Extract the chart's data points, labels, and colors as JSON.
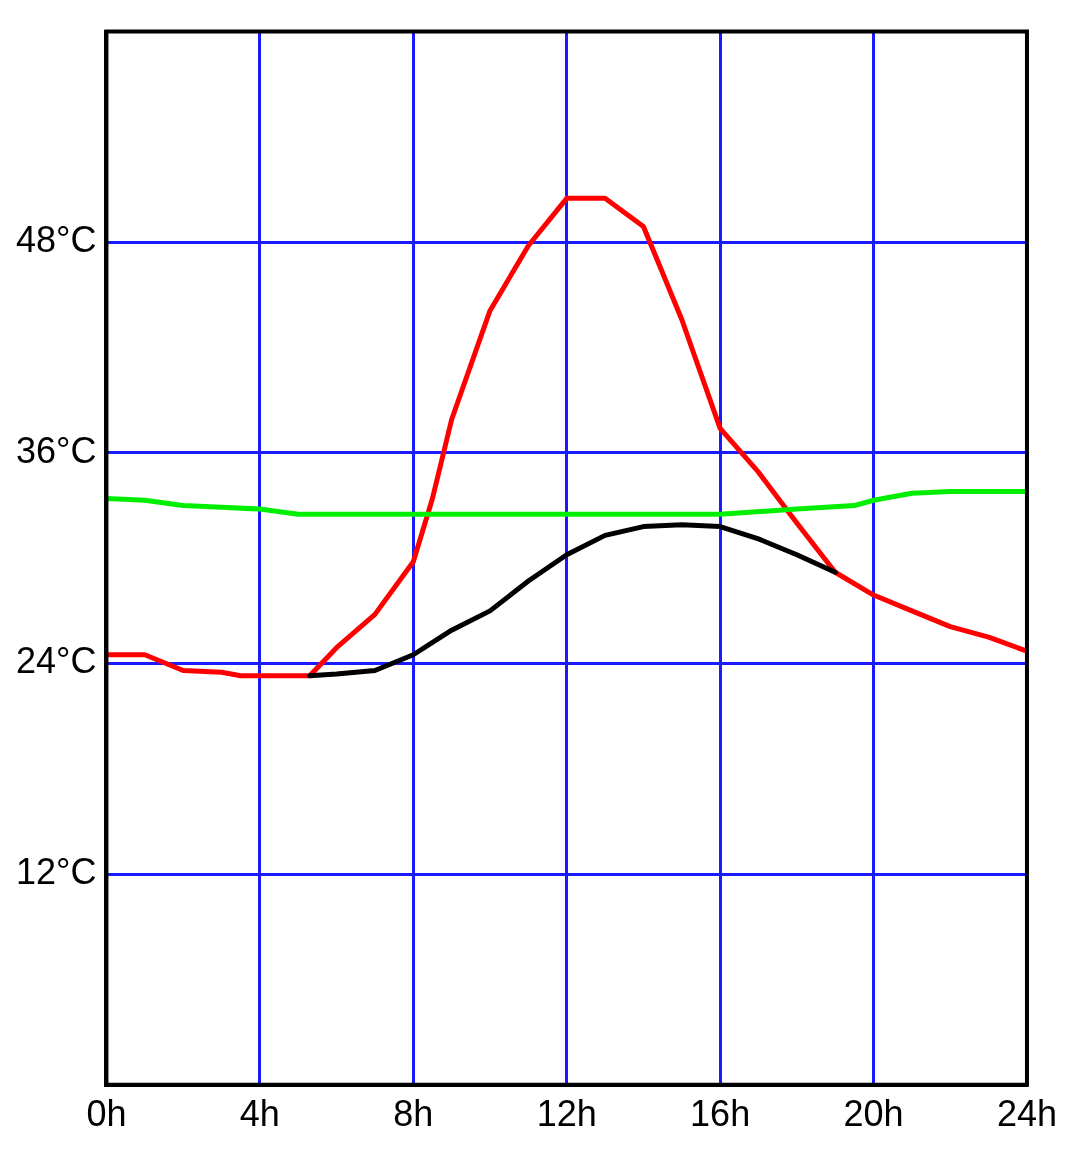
{
  "chart_data": {
    "type": "line",
    "xlim": [
      0,
      24
    ],
    "xticks": [
      {
        "value": 0,
        "label": "0h"
      },
      {
        "value": 4,
        "label": "4h"
      },
      {
        "value": 8,
        "label": "8h"
      },
      {
        "value": 12,
        "label": "12h"
      },
      {
        "value": 16,
        "label": "16h"
      },
      {
        "value": 20,
        "label": "20h"
      },
      {
        "value": 24,
        "label": "24h"
      }
    ],
    "ylim": [
      0,
      60
    ],
    "yticks": [
      {
        "value": 12,
        "label": "12°C"
      },
      {
        "value": 24,
        "label": "24°C"
      },
      {
        "value": 36,
        "label": "36°C"
      },
      {
        "value": 48,
        "label": "48°C"
      }
    ],
    "grid": true,
    "legend": false,
    "marker": "none",
    "line_style": "solid",
    "series": [
      {
        "color": "#00ee00",
        "x": [
          0,
          1,
          2,
          3,
          4,
          5,
          8,
          12,
          16,
          18,
          19.5,
          20,
          21,
          22,
          24
        ],
        "values": [
          33.4,
          33.3,
          33.0,
          32.9,
          32.8,
          32.5,
          32.5,
          32.5,
          32.5,
          32.8,
          33.0,
          33.3,
          33.7,
          33.8,
          33.8
        ]
      },
      {
        "color": "#000000",
        "x": [
          5.3,
          6,
          7,
          8,
          9,
          10,
          11,
          12,
          13,
          14,
          15,
          16,
          17,
          18,
          19
        ],
        "values": [
          23.3,
          23.4,
          23.6,
          24.5,
          25.9,
          27.0,
          28.7,
          30.2,
          31.3,
          31.8,
          31.9,
          31.8,
          31.1,
          30.2,
          29.2
        ]
      },
      {
        "color": "#ff0000",
        "x": [
          0,
          1,
          2,
          3,
          3.5,
          5.3,
          6,
          7,
          8,
          8.5,
          9,
          10,
          11,
          12,
          13,
          14,
          15,
          16,
          17,
          18,
          19,
          20,
          21,
          22,
          23,
          24
        ],
        "values": [
          24.5,
          24.5,
          23.6,
          23.5,
          23.3,
          23.3,
          24.9,
          26.8,
          29.8,
          33.4,
          37.9,
          44.1,
          47.8,
          50.5,
          50.5,
          48.9,
          43.6,
          37.4,
          34.9,
          32.0,
          29.2,
          27.9,
          27.0,
          26.1,
          25.5,
          24.7
        ]
      }
    ]
  }
}
